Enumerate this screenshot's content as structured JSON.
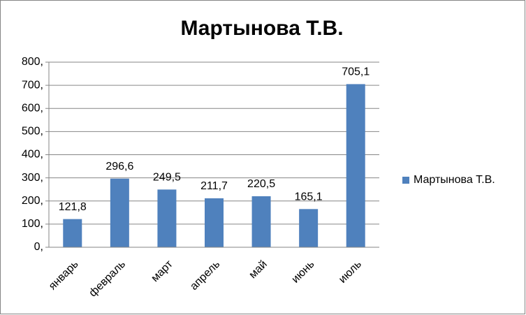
{
  "chart_data": {
    "type": "bar",
    "title": "Мартынова Т.В.",
    "categories": [
      "январь",
      "февраль",
      "март",
      "апрель",
      "май",
      "июнь",
      "июль"
    ],
    "series": [
      {
        "name": "Мартынова Т.В.",
        "color": "#4f81bd",
        "values": [
          121.8,
          296.6,
          249.5,
          211.7,
          220.5,
          165.1,
          705.1
        ],
        "value_labels": [
          "121,8",
          "296,6",
          "249,5",
          "211,7",
          "220,5",
          "165,1",
          "705,1"
        ]
      }
    ],
    "ylim": [
      0,
      800
    ],
    "yticks": [
      {
        "value": 0,
        "label": "0,"
      },
      {
        "value": 100,
        "label": "100,"
      },
      {
        "value": 200,
        "label": "200,"
      },
      {
        "value": 300,
        "label": "300,"
      },
      {
        "value": 400,
        "label": "400,"
      },
      {
        "value": 500,
        "label": "500,"
      },
      {
        "value": 600,
        "label": "600,"
      },
      {
        "value": 700,
        "label": "700,"
      },
      {
        "value": 800,
        "label": "800,"
      }
    ],
    "grid": true,
    "legend": "right"
  }
}
